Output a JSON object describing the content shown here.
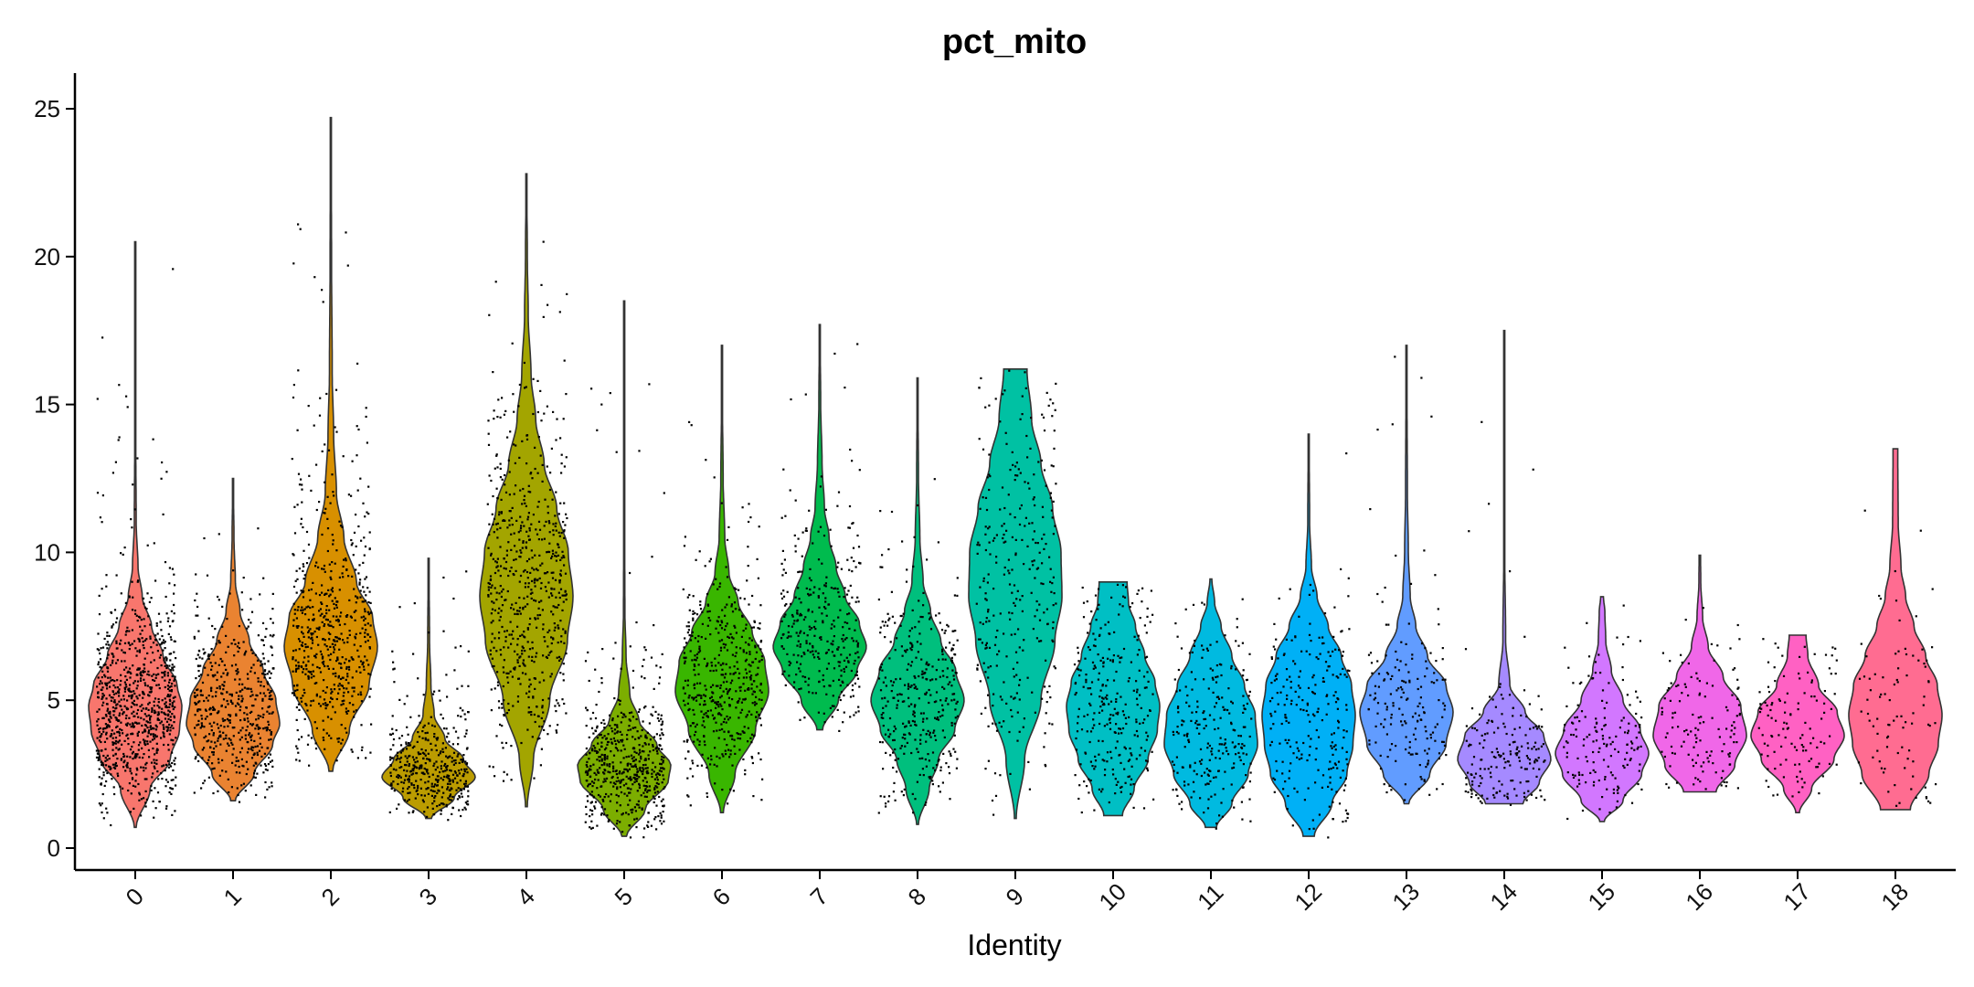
{
  "chart_data": {
    "type": "violin",
    "title": "pct_mito",
    "xlabel": "Identity",
    "ylabel": "",
    "ylim": [
      0,
      26
    ],
    "yticks": [
      0,
      5,
      10,
      15,
      20,
      25
    ],
    "categories": [
      "0",
      "1",
      "2",
      "3",
      "4",
      "5",
      "6",
      "7",
      "8",
      "9",
      "10",
      "11",
      "12",
      "13",
      "14",
      "15",
      "16",
      "17",
      "18"
    ],
    "colors": [
      "#F8766D",
      "#EA8331",
      "#D89000",
      "#BB9C00",
      "#A3A500",
      "#7CAE00",
      "#39B600",
      "#00BB4E",
      "#00BF7D",
      "#00C1A3",
      "#00BFC4",
      "#00BAE0",
      "#00B0F6",
      "#619CFF",
      "#A58AFF",
      "#D277FF",
      "#F067E8",
      "#FF61C3",
      "#FF6C91"
    ],
    "groups": [
      {
        "id": "0",
        "min": 0.7,
        "max": 20.5,
        "median": 4.7,
        "profile": [
          [
            0.7,
            0.02
          ],
          [
            2.0,
            0.32
          ],
          [
            3.0,
            0.75
          ],
          [
            4.0,
            0.95
          ],
          [
            4.8,
            1.0
          ],
          [
            5.5,
            0.9
          ],
          [
            6.5,
            0.6
          ],
          [
            7.5,
            0.35
          ],
          [
            8.5,
            0.15
          ],
          [
            9.5,
            0.06
          ],
          [
            11,
            0.02
          ],
          [
            14,
            0.01
          ],
          [
            20.5,
            0.004
          ]
        ],
        "n": 900
      },
      {
        "id": "1",
        "min": 1.6,
        "max": 12.5,
        "median": 4.2,
        "profile": [
          [
            1.6,
            0.05
          ],
          [
            2.5,
            0.45
          ],
          [
            3.5,
            0.85
          ],
          [
            4.2,
            1.0
          ],
          [
            5.0,
            0.92
          ],
          [
            6.0,
            0.65
          ],
          [
            7.0,
            0.35
          ],
          [
            8.0,
            0.15
          ],
          [
            9,
            0.05
          ],
          [
            10.5,
            0.02
          ],
          [
            12.5,
            0.005
          ]
        ],
        "n": 520
      },
      {
        "id": "2",
        "min": 2.6,
        "max": 24.7,
        "median": 7.0,
        "profile": [
          [
            2.6,
            0.04
          ],
          [
            4.0,
            0.4
          ],
          [
            5.5,
            0.82
          ],
          [
            6.8,
            1.0
          ],
          [
            7.8,
            0.9
          ],
          [
            9.0,
            0.55
          ],
          [
            10.5,
            0.28
          ],
          [
            12,
            0.12
          ],
          [
            14,
            0.06
          ],
          [
            16,
            0.03
          ],
          [
            20,
            0.015
          ],
          [
            24.7,
            0.005
          ]
        ],
        "n": 600
      },
      {
        "id": "3",
        "min": 1.0,
        "max": 9.8,
        "median": 2.4,
        "profile": [
          [
            1.0,
            0.06
          ],
          [
            1.7,
            0.55
          ],
          [
            2.4,
            1.0
          ],
          [
            3.0,
            0.75
          ],
          [
            3.7,
            0.35
          ],
          [
            4.5,
            0.12
          ],
          [
            5.5,
            0.05
          ],
          [
            7,
            0.02
          ],
          [
            9.8,
            0.005
          ]
        ],
        "n": 420
      },
      {
        "id": "4",
        "min": 1.4,
        "max": 22.8,
        "median": 8.5,
        "profile": [
          [
            1.4,
            0.02
          ],
          [
            3.0,
            0.15
          ],
          [
            5.0,
            0.5
          ],
          [
            7.0,
            0.88
          ],
          [
            8.5,
            1.0
          ],
          [
            10,
            0.9
          ],
          [
            11.5,
            0.65
          ],
          [
            13,
            0.38
          ],
          [
            14.5,
            0.2
          ],
          [
            16,
            0.1
          ],
          [
            18,
            0.04
          ],
          [
            20,
            0.02
          ],
          [
            22.8,
            0.005
          ]
        ],
        "n": 620
      },
      {
        "id": "5",
        "min": 0.4,
        "max": 18.5,
        "median": 2.6,
        "profile": [
          [
            0.4,
            0.05
          ],
          [
            1.3,
            0.45
          ],
          [
            2.3,
            0.95
          ],
          [
            2.8,
            1.0
          ],
          [
            3.5,
            0.7
          ],
          [
            4.3,
            0.32
          ],
          [
            5.2,
            0.12
          ],
          [
            6.5,
            0.04
          ],
          [
            8,
            0.015
          ],
          [
            12,
            0.006
          ],
          [
            18.5,
            0.003
          ]
        ],
        "n": 560
      },
      {
        "id": "6",
        "min": 1.2,
        "max": 17.0,
        "median": 5.5,
        "profile": [
          [
            1.2,
            0.03
          ],
          [
            2.5,
            0.28
          ],
          [
            4.0,
            0.72
          ],
          [
            5.3,
            1.0
          ],
          [
            6.3,
            0.92
          ],
          [
            7.3,
            0.65
          ],
          [
            8.3,
            0.35
          ],
          [
            9.3,
            0.15
          ],
          [
            10.5,
            0.06
          ],
          [
            12.5,
            0.025
          ],
          [
            15,
            0.01
          ],
          [
            17,
            0.004
          ]
        ],
        "n": 500
      },
      {
        "id": "7",
        "min": 4.0,
        "max": 17.7,
        "median": 7.0,
        "profile": [
          [
            4.0,
            0.06
          ],
          [
            5.0,
            0.4
          ],
          [
            6.0,
            0.8
          ],
          [
            6.8,
            1.0
          ],
          [
            7.6,
            0.85
          ],
          [
            8.5,
            0.55
          ],
          [
            9.5,
            0.35
          ],
          [
            10.5,
            0.2
          ],
          [
            11.5,
            0.1
          ],
          [
            13,
            0.05
          ],
          [
            15,
            0.02
          ],
          [
            17.7,
            0.005
          ]
        ],
        "n": 330
      },
      {
        "id": "8",
        "min": 0.8,
        "max": 15.9,
        "median": 5.0,
        "profile": [
          [
            0.8,
            0.02
          ],
          [
            2.0,
            0.25
          ],
          [
            3.0,
            0.45
          ],
          [
            4.0,
            0.8
          ],
          [
            5.0,
            1.0
          ],
          [
            6.0,
            0.82
          ],
          [
            7.0,
            0.5
          ],
          [
            8.0,
            0.28
          ],
          [
            9.0,
            0.12
          ],
          [
            10.5,
            0.05
          ],
          [
            12.5,
            0.02
          ],
          [
            15.9,
            0.004
          ]
        ],
        "n": 360
      },
      {
        "id": "9",
        "min": 1.0,
        "max": 16.2,
        "median": 8.5,
        "profile": [
          [
            1.0,
            0.02
          ],
          [
            3.0,
            0.2
          ],
          [
            5.0,
            0.55
          ],
          [
            7.0,
            0.85
          ],
          [
            8.5,
            1.0
          ],
          [
            10,
            0.98
          ],
          [
            11.5,
            0.8
          ],
          [
            13,
            0.55
          ],
          [
            14.5,
            0.35
          ],
          [
            16.2,
            0.25
          ]
        ],
        "n": 300
      },
      {
        "id": "10",
        "min": 1.1,
        "max": 9.0,
        "median": 4.5,
        "profile": [
          [
            1.1,
            0.2
          ],
          [
            2.0,
            0.45
          ],
          [
            3.0,
            0.75
          ],
          [
            4.0,
            0.95
          ],
          [
            4.8,
            1.0
          ],
          [
            5.6,
            0.9
          ],
          [
            6.5,
            0.68
          ],
          [
            7.5,
            0.48
          ],
          [
            8.3,
            0.33
          ],
          [
            9.0,
            0.3
          ]
        ],
        "n": 280
      },
      {
        "id": "11",
        "min": 0.7,
        "max": 9.1,
        "median": 3.8,
        "profile": [
          [
            0.7,
            0.12
          ],
          [
            1.5,
            0.45
          ],
          [
            2.5,
            0.8
          ],
          [
            3.5,
            1.0
          ],
          [
            4.5,
            0.95
          ],
          [
            5.5,
            0.72
          ],
          [
            6.5,
            0.45
          ],
          [
            7.5,
            0.22
          ],
          [
            8.3,
            0.08
          ],
          [
            9.1,
            0.02
          ]
        ],
        "n": 240
      },
      {
        "id": "12",
        "min": 0.4,
        "max": 14.0,
        "median": 4.5,
        "profile": [
          [
            0.4,
            0.12
          ],
          [
            1.5,
            0.5
          ],
          [
            2.5,
            0.82
          ],
          [
            3.5,
            0.95
          ],
          [
            4.5,
            1.0
          ],
          [
            5.5,
            0.92
          ],
          [
            6.5,
            0.7
          ],
          [
            7.5,
            0.42
          ],
          [
            8.5,
            0.18
          ],
          [
            9.5,
            0.06
          ],
          [
            11,
            0.02
          ],
          [
            14,
            0.008
          ]
        ],
        "n": 240
      },
      {
        "id": "13",
        "min": 1.5,
        "max": 17.0,
        "median": 4.6,
        "profile": [
          [
            1.5,
            0.05
          ],
          [
            2.5,
            0.5
          ],
          [
            3.5,
            0.85
          ],
          [
            4.6,
            1.0
          ],
          [
            5.5,
            0.85
          ],
          [
            6.5,
            0.45
          ],
          [
            7.5,
            0.2
          ],
          [
            8.5,
            0.08
          ],
          [
            10,
            0.04
          ],
          [
            12,
            0.02
          ],
          [
            15,
            0.012
          ],
          [
            17,
            0.01
          ]
        ],
        "n": 180
      },
      {
        "id": "14",
        "min": 1.5,
        "max": 17.5,
        "median": 3.0,
        "profile": [
          [
            1.5,
            0.4
          ],
          [
            2.2,
            0.75
          ],
          [
            3.0,
            1.0
          ],
          [
            3.8,
            0.85
          ],
          [
            4.6,
            0.45
          ],
          [
            5.5,
            0.12
          ],
          [
            7,
            0.03
          ],
          [
            10,
            0.01
          ],
          [
            17.5,
            0.005
          ]
        ],
        "n": 180
      },
      {
        "id": "15",
        "min": 0.9,
        "max": 8.5,
        "median": 2.8,
        "profile": [
          [
            0.9,
            0.05
          ],
          [
            1.6,
            0.45
          ],
          [
            2.5,
            0.85
          ],
          [
            3.2,
            1.0
          ],
          [
            4.0,
            0.82
          ],
          [
            5.0,
            0.45
          ],
          [
            6.0,
            0.2
          ],
          [
            7.0,
            0.08
          ],
          [
            8.0,
            0.06
          ],
          [
            8.5,
            0.03
          ]
        ],
        "n": 160
      },
      {
        "id": "16",
        "min": 1.9,
        "max": 9.9,
        "median": 3.9,
        "profile": [
          [
            1.9,
            0.35
          ],
          [
            2.8,
            0.75
          ],
          [
            3.8,
            1.0
          ],
          [
            4.8,
            0.88
          ],
          [
            5.8,
            0.5
          ],
          [
            6.8,
            0.18
          ],
          [
            7.8,
            0.06
          ],
          [
            9.0,
            0.02
          ],
          [
            9.9,
            0.015
          ]
        ],
        "n": 130
      },
      {
        "id": "17",
        "min": 1.2,
        "max": 7.2,
        "median": 3.8,
        "profile": [
          [
            1.2,
            0.04
          ],
          [
            2.0,
            0.3
          ],
          [
            3.0,
            0.78
          ],
          [
            3.8,
            1.0
          ],
          [
            4.6,
            0.85
          ],
          [
            5.5,
            0.45
          ],
          [
            6.5,
            0.22
          ],
          [
            7.2,
            0.18
          ]
        ],
        "n": 120
      },
      {
        "id": "18",
        "min": 1.3,
        "max": 13.5,
        "median": 4.5,
        "profile": [
          [
            1.3,
            0.32
          ],
          [
            2.5,
            0.72
          ],
          [
            3.5,
            0.92
          ],
          [
            4.5,
            1.0
          ],
          [
            5.5,
            0.9
          ],
          [
            6.5,
            0.65
          ],
          [
            7.5,
            0.4
          ],
          [
            8.5,
            0.22
          ],
          [
            9.5,
            0.12
          ],
          [
            11,
            0.06
          ],
          [
            13.5,
            0.05
          ]
        ],
        "n": 90
      }
    ]
  }
}
